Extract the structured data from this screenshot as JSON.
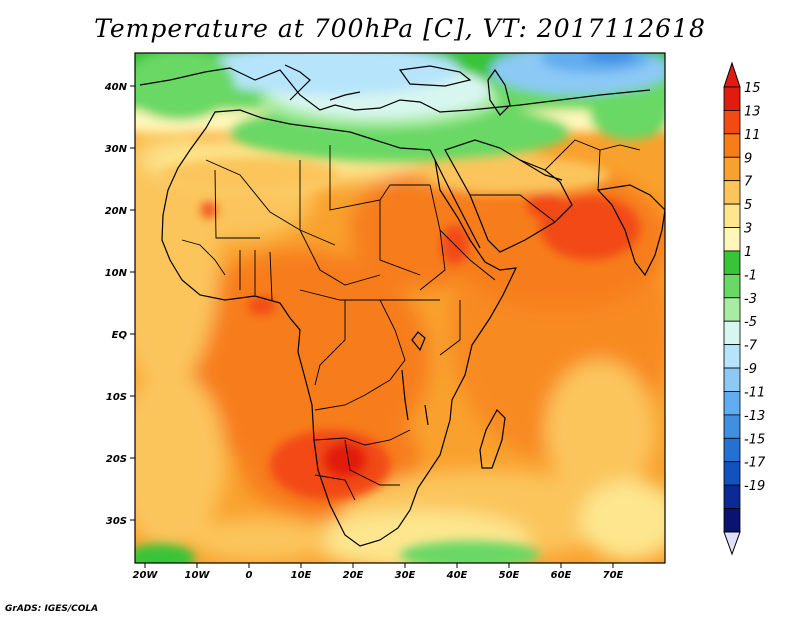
{
  "title": "Temperature at 700hPa [C], VT: 2017112618",
  "credit": "GrADS: IGES/COLA",
  "map": {
    "lon_labels": [
      "20W",
      "10W",
      "0",
      "10E",
      "20E",
      "30E",
      "40E",
      "50E",
      "60E",
      "70E"
    ],
    "lat_labels": [
      "40N",
      "30N",
      "20N",
      "10N",
      "EQ",
      "10S",
      "20S",
      "30S"
    ]
  },
  "colorbar": {
    "labels": [
      "15",
      "13",
      "11",
      "9",
      "7",
      "5",
      "3",
      "1",
      "-1",
      "-3",
      "-5",
      "-7",
      "-9",
      "-11",
      "-13",
      "-15",
      "-17",
      "-19"
    ],
    "colors": [
      "#e11b10",
      "#f24a12",
      "#f77d1a",
      "#f9a12e",
      "#fbc55c",
      "#fde68e",
      "#fef7b9",
      "#38c437",
      "#69d865",
      "#a8eba2",
      "#d8f6f0",
      "#b6e4fa",
      "#8cc9f5",
      "#62adef",
      "#3f8fe3",
      "#2471d3",
      "#1152c0",
      "#0c2a93",
      "#0a1272"
    ],
    "top_arrow_color": "#e11b10",
    "bottom_arrow_color": "#e0e0fa"
  }
}
